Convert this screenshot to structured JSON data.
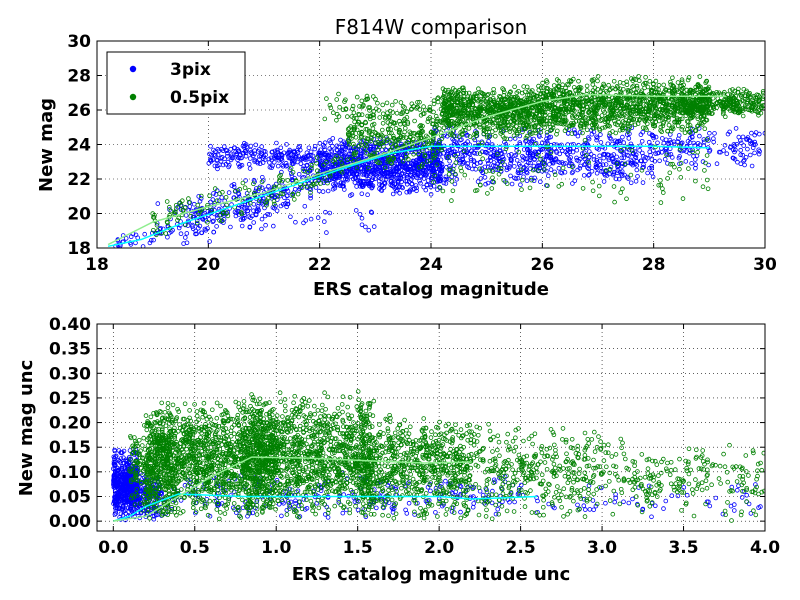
{
  "chart_data": [
    {
      "type": "scatter",
      "title": "F814W comparison",
      "xlabel": "ERS catalog magnitude",
      "ylabel": "New mag",
      "xlim": [
        18,
        30
      ],
      "ylim": [
        18,
        30
      ],
      "xticks": [
        "18",
        "20",
        "22",
        "24",
        "26",
        "28",
        "30"
      ],
      "yticks": [
        "18",
        "20",
        "22",
        "24",
        "26",
        "28",
        "30"
      ],
      "grid": true,
      "legend": {
        "placement": "top-left",
        "entries": [
          {
            "label": "3pix",
            "color": "#0000ff"
          },
          {
            "label": "0.5pix",
            "color": "#008000"
          }
        ]
      },
      "series": [
        {
          "name": "3pix",
          "color": "#0000ff",
          "trend_color": "#00ffff",
          "trend": [
            [
              18.2,
              18.1
            ],
            [
              18.8,
              18.5
            ],
            [
              19.5,
              19.4
            ],
            [
              20.5,
              20.5
            ],
            [
              21.5,
              21.6
            ],
            [
              22.5,
              22.7
            ],
            [
              23.3,
              23.5
            ],
            [
              24,
              23.9
            ],
            [
              25,
              23.9
            ],
            [
              26,
              23.9
            ],
            [
              27,
              23.9
            ],
            [
              28,
              23.9
            ],
            [
              29,
              23.8
            ]
          ],
          "clusters": [
            {
              "x": [
                18.3,
                19.5
              ],
              "ymode": "diag",
              "yspread": 0.3,
              "count": 40
            },
            {
              "x": [
                19.5,
                22
              ],
              "ymode": "diag",
              "yspread": 0.6,
              "count": 260
            },
            {
              "x": [
                20,
                22
              ],
              "ymode": "band",
              "ylo": 22.5,
              "yhi": 24.2,
              "count": 200
            },
            {
              "x": [
                22,
                24.2
              ],
              "ymode": "band",
              "ylo": 21,
              "yhi": 24.5,
              "count": 900
            },
            {
              "x": [
                24,
                28
              ],
              "ymode": "band",
              "ylo": 21.5,
              "yhi": 25.2,
              "count": 650
            },
            {
              "x": [
                28,
                30
              ],
              "ymode": "band",
              "ylo": 22.5,
              "yhi": 25,
              "count": 140
            },
            {
              "x": [
                19,
                23
              ],
              "ymode": "band",
              "ylo": 18.5,
              "yhi": 21.5,
              "count": 60
            }
          ]
        },
        {
          "name": "0.5pix",
          "color": "#008000",
          "trend_color": "#90ee90",
          "trend": [
            [
              18.2,
              18.2
            ],
            [
              19,
              19.5
            ],
            [
              20,
              20.4
            ],
            [
              21,
              21.2
            ],
            [
              22,
              22.3
            ],
            [
              23,
              23.3
            ],
            [
              24,
              24.4
            ],
            [
              25,
              25.6
            ],
            [
              26,
              26.5
            ],
            [
              26.8,
              26.9
            ],
            [
              28,
              26.8
            ],
            [
              29,
              26.8
            ],
            [
              29.3,
              26.8
            ]
          ],
          "clusters": [
            {
              "x": [
                19,
                22.5
              ],
              "ymode": "diag",
              "yspread": 0.5,
              "count": 150
            },
            {
              "x": [
                22.5,
                24.2
              ],
              "ymode": "band",
              "ylo": 22.5,
              "yhi": 26.5,
              "count": 300
            },
            {
              "x": [
                24.2,
                26
              ],
              "ymode": "band",
              "ylo": 24.3,
              "yhi": 27.5,
              "count": 700
            },
            {
              "x": [
                26,
                29
              ],
              "ymode": "band",
              "ylo": 24.5,
              "yhi": 28,
              "count": 1100
            },
            {
              "x": [
                28.5,
                30
              ],
              "ymode": "band",
              "ylo": 25.5,
              "yhi": 27.3,
              "count": 300
            },
            {
              "x": [
                22,
                26
              ],
              "ymode": "band",
              "ylo": 25,
              "yhi": 27.2,
              "count": 150
            },
            {
              "x": [
                24,
                29
              ],
              "ymode": "band",
              "ylo": 20.5,
              "yhi": 24.5,
              "count": 120
            }
          ]
        }
      ]
    },
    {
      "type": "scatter",
      "title": "",
      "xlabel": "ERS catalog magnitude unc",
      "ylabel": "New mag unc",
      "xlim": [
        -0.1,
        4.0
      ],
      "ylim": [
        -0.02,
        0.4
      ],
      "xticks": [
        "0.0",
        "0.5",
        "1.0",
        "1.5",
        "2.0",
        "2.5",
        "3.0",
        "3.5",
        "4.0"
      ],
      "yticks": [
        "0.00",
        "0.05",
        "0.10",
        "0.15",
        "0.20",
        "0.25",
        "0.30",
        "0.35",
        "0.40"
      ],
      "grid": true,
      "series": [
        {
          "name": "3pix",
          "color": "#0000ff",
          "trend_color": "#00ffff",
          "trend": [
            [
              0.0,
              0.0
            ],
            [
              0.1,
              0.01
            ],
            [
              0.2,
              0.03
            ],
            [
              0.4,
              0.055
            ],
            [
              0.8,
              0.05
            ],
            [
              1.2,
              0.05
            ],
            [
              1.6,
              0.05
            ],
            [
              2.0,
              0.05
            ],
            [
              2.2,
              0.045
            ],
            [
              2.6,
              0.05
            ]
          ],
          "clusters": [
            {
              "x": [
                0.0,
                0.15
              ],
              "ymode": "band",
              "ylo": 0.0,
              "yhi": 0.15,
              "count": 500
            },
            {
              "x": [
                0.1,
                0.3
              ],
              "ymode": "band",
              "ylo": 0.0,
              "yhi": 0.1,
              "count": 200
            },
            {
              "x": [
                0.3,
                2.5
              ],
              "ymode": "band",
              "ylo": 0.0,
              "yhi": 0.1,
              "count": 250
            },
            {
              "x": [
                2.5,
                4.0
              ],
              "ymode": "band",
              "ylo": 0.0,
              "yhi": 0.08,
              "count": 60
            }
          ]
        },
        {
          "name": "0.5pix",
          "color": "#008000",
          "trend_color": "#90ee90",
          "trend": [
            [
              0.0,
              0.0
            ],
            [
              0.2,
              0.01
            ],
            [
              0.35,
              0.04
            ],
            [
              0.6,
              0.09
            ],
            [
              0.85,
              0.13
            ],
            [
              1.2,
              0.128
            ],
            [
              1.6,
              0.122
            ],
            [
              1.9,
              0.118
            ],
            [
              2.2,
              0.12
            ]
          ],
          "clusters": [
            {
              "x": [
                0.2,
                1.0
              ],
              "ymode": "band",
              "ylo": 0.0,
              "yhi": 0.25,
              "count": 1400
            },
            {
              "x": [
                0.8,
                1.6
              ],
              "ymode": "band",
              "ylo": 0.0,
              "yhi": 0.27,
              "count": 1200
            },
            {
              "x": [
                1.5,
                2.2
              ],
              "ymode": "band",
              "ylo": 0.0,
              "yhi": 0.22,
              "count": 700
            },
            {
              "x": [
                2.2,
                3.0
              ],
              "ymode": "band",
              "ylo": 0.0,
              "yhi": 0.2,
              "count": 350
            },
            {
              "x": [
                3.0,
                4.0
              ],
              "ymode": "band",
              "ylo": 0.0,
              "yhi": 0.17,
              "count": 220
            },
            {
              "x": [
                0.1,
                0.4
              ],
              "ymode": "band",
              "ylo": 0.0,
              "yhi": 0.22,
              "count": 250
            }
          ]
        }
      ]
    }
  ]
}
